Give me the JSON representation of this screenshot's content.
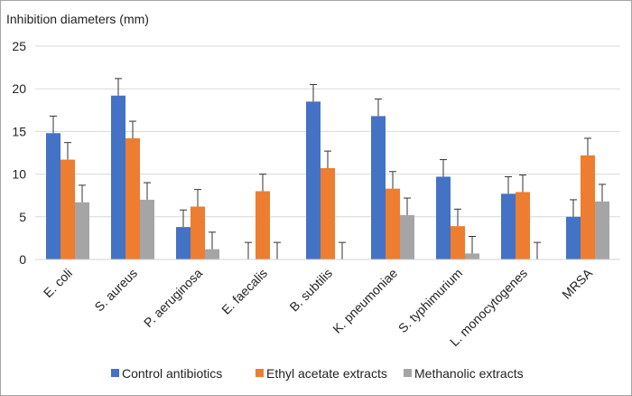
{
  "chart_data": {
    "type": "bar",
    "ylabel": "Inhibition diameters (mm)",
    "ylim": [
      0,
      25
    ],
    "yticks": [
      0,
      5,
      10,
      15,
      20,
      25
    ],
    "grid": true,
    "legend_position": "bottom",
    "categories": [
      "E. coli",
      "S. aureus",
      "P. aeruginosa",
      "E. faecalis",
      "B. subtilis",
      "K. pneumoniae",
      "S. typhimurium",
      "L. monocytogenes",
      "MRSA"
    ],
    "series": [
      {
        "name": "Control antibiotics",
        "color": "#4472c4",
        "values": [
          14.8,
          19.2,
          3.8,
          0,
          18.5,
          16.8,
          9.7,
          7.7,
          5.0
        ],
        "errors": [
          2.0,
          2.0,
          2.0,
          2.0,
          2.0,
          2.0,
          2.0,
          2.0,
          2.0
        ]
      },
      {
        "name": "Ethyl acetate extracts",
        "color": "#ed7d31",
        "values": [
          11.7,
          14.2,
          6.2,
          8.0,
          10.7,
          8.3,
          3.9,
          7.9,
          12.2
        ],
        "errors": [
          2.0,
          2.0,
          2.0,
          2.0,
          2.0,
          2.0,
          2.0,
          2.0,
          2.0
        ]
      },
      {
        "name": "Methanolic extracts",
        "color": "#a5a5a5",
        "values": [
          6.7,
          7.0,
          1.2,
          0,
          0,
          5.2,
          0.7,
          0,
          6.8
        ],
        "errors": [
          2.0,
          2.0,
          2.0,
          2.0,
          2.0,
          2.0,
          2.0,
          2.0,
          2.0
        ]
      }
    ]
  }
}
